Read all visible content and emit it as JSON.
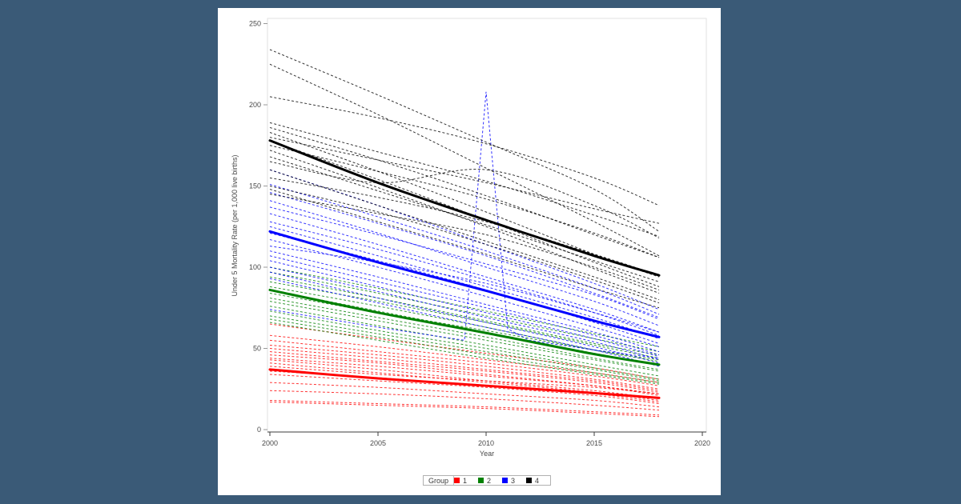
{
  "page": {
    "background_color": "#3a5a77",
    "card_color": "#ffffff"
  },
  "chart_data": {
    "type": "line",
    "title": "",
    "xlabel": "Year",
    "ylabel": "Under 5 Mortality Rate (per 1,000 live births)",
    "xlim": [
      2000,
      2020
    ],
    "ylim": [
      0,
      250
    ],
    "xticks": [
      2000,
      2005,
      2010,
      2015,
      2020
    ],
    "yticks": [
      0,
      50,
      100,
      150,
      200,
      250
    ],
    "grid": false,
    "legend": {
      "title": "Group",
      "position": "bottom",
      "entries": [
        "1",
        "2",
        "3",
        "4"
      ]
    },
    "sample_years": [
      2000,
      2005,
      2010,
      2015,
      2018
    ],
    "line_style": {
      "individual": "dashed",
      "mean": "solid-thick"
    },
    "groups": [
      {
        "label": "1",
        "color": "#ff0000",
        "mean": [
          37,
          31.5,
          27,
          22.5,
          19.5
        ],
        "lines": [
          [
            65,
            56,
            47,
            38,
            31
          ],
          [
            58,
            51,
            43,
            35,
            29
          ],
          [
            55,
            48,
            41,
            33,
            27
          ],
          [
            52,
            46,
            39,
            31,
            25
          ],
          [
            50,
            44,
            37,
            30,
            24
          ],
          [
            48,
            42,
            36,
            29,
            23
          ],
          [
            46,
            41,
            34,
            27,
            21
          ],
          [
            44,
            39,
            33,
            27,
            22
          ],
          [
            43,
            37,
            30,
            24,
            19
          ],
          [
            41,
            35,
            29,
            23,
            18
          ],
          [
            39,
            34,
            30,
            26,
            22
          ],
          [
            36,
            32,
            27,
            22,
            17
          ],
          [
            34,
            30,
            26,
            21,
            16
          ],
          [
            29,
            26,
            22,
            18,
            14
          ],
          [
            24,
            22,
            19,
            15,
            12
          ],
          [
            18,
            16,
            14,
            11,
            9
          ],
          [
            17,
            15,
            13,
            10,
            8
          ]
        ]
      },
      {
        "label": "2",
        "color": "#008000",
        "mean": [
          86,
          72,
          59.5,
          46.5,
          40
        ],
        "lines": [
          [
            100,
            87,
            73,
            59,
            51
          ],
          [
            97,
            84,
            70,
            56,
            48
          ],
          [
            94,
            81,
            67,
            53,
            46
          ],
          [
            91,
            79,
            66,
            52,
            44
          ],
          [
            88,
            76,
            63,
            49,
            42
          ],
          [
            86,
            73,
            60,
            47,
            40
          ],
          [
            84,
            72,
            61,
            49,
            43
          ],
          [
            81,
            69,
            57,
            44,
            37
          ],
          [
            79,
            67,
            55,
            43,
            36
          ],
          [
            76,
            64,
            52,
            40,
            33
          ],
          [
            73,
            61,
            50,
            38,
            31
          ],
          [
            70,
            59,
            48,
            37,
            30
          ],
          [
            68,
            57,
            46,
            35,
            29
          ],
          [
            66,
            55,
            44,
            34,
            28
          ]
        ]
      },
      {
        "label": "3",
        "color": "#0000ff",
        "mean": [
          122,
          103,
          85.5,
          67,
          57
        ],
        "lines": [
          [
            160,
            138,
            114,
            90,
            74
          ],
          [
            151,
            131,
            110,
            87,
            71
          ],
          [
            146,
            127,
            107,
            84,
            69
          ],
          [
            141,
            121,
            100,
            79,
            64
          ],
          [
            137,
            120,
            102,
            83,
            68
          ],
          [
            133,
            114,
            94,
            74,
            60
          ],
          [
            128,
            111,
            92,
            72,
            58
          ],
          [
            125,
            107,
            88,
            69,
            56
          ],
          [
            121,
            104,
            86,
            66,
            53
          ],
          [
            117,
            100,
            82,
            63,
            51
          ],
          [
            113,
            103,
            90,
            72,
            60
          ],
          [
            110,
            94,
            77,
            60,
            48
          ],
          [
            107,
            91,
            75,
            58,
            46
          ],
          [
            104,
            88,
            72,
            56,
            45
          ],
          [
            100,
            85,
            69,
            54,
            43
          ],
          [
            97,
            81,
            66,
            51,
            41
          ],
          [
            93,
            78,
            63,
            49,
            39
          ]
        ],
        "outlier_line": {
          "x": [
            2000,
            2005,
            2008,
            2009,
            2010,
            2011,
            2012,
            2015,
            2018
          ],
          "y": [
            74,
            63,
            57,
            55,
            208,
            62,
            55,
            49,
            44
          ]
        }
      },
      {
        "label": "4",
        "color": "#000000",
        "mean": [
          178,
          152,
          129,
          107,
          95
        ],
        "lines": [
          [
            234,
            206,
            177,
            148,
            122
          ],
          [
            225,
            194,
            161,
            128,
            107
          ],
          [
            205,
            192,
            176,
            155,
            138
          ],
          [
            189,
            171,
            153,
            132,
            119
          ],
          [
            186,
            166,
            144,
            120,
            106
          ],
          [
            183,
            159,
            134,
            108,
            94
          ],
          [
            180,
            166,
            152,
            136,
            127
          ],
          [
            178,
            154,
            129,
            103,
            88
          ],
          [
            175,
            159,
            142,
            121,
            106
          ],
          [
            172,
            149,
            125,
            99,
            84
          ],
          [
            168,
            147,
            126,
            104,
            91
          ],
          [
            165,
            152,
            160,
            138,
            118
          ],
          [
            160,
            138,
            116,
            94,
            80
          ],
          [
            155,
            143,
            128,
            108,
            95
          ],
          [
            150,
            134,
            114,
            92,
            78
          ],
          [
            148,
            128,
            108,
            87,
            75
          ],
          [
            145,
            133,
            120,
            100,
            86
          ]
        ]
      }
    ]
  }
}
